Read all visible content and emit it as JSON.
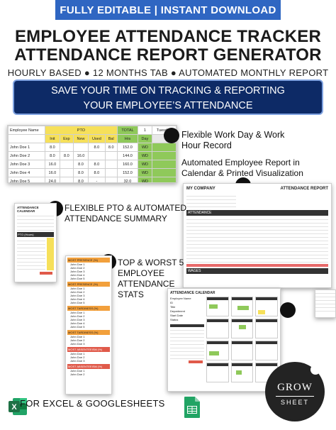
{
  "banner": "FULLY EDITABLE | INSTANT DOWNLOAD",
  "title_line1": "EMPLOYEE ATTENDANCE TRACKER",
  "title_line2": "ATTENDANCE REPORT GENERATOR",
  "subtitle": "HOURLY BASED ● 12 MONTHS TAB ● AUTOMATED MONTHLY REPORT",
  "hero_line1": "SAVE YOUR TIME ON TRACKING & REPORTING",
  "hero_line2": "YOUR EMPLOYEE’S ATTENDANCE",
  "features": {
    "f1_line1": "Flexible Work Day & Work",
    "f1_line2": "Hour Record",
    "f2_line1": "Automated Employee Report in",
    "f2_line2": "Calendar & Printed Visualization",
    "f3_line1": "FLEXIBLE PTO & AUTOMATED",
    "f3_line2": "ATTENDANCE SUMMARY",
    "f4_line1": "TOP & WORST 5",
    "f4_line2": "EMPLOYEE",
    "f4_line3": "ATTENDANCE",
    "f4_line4": "STATS"
  },
  "tracker": {
    "headers": [
      "Employee Name",
      "PTO",
      "TOTAL",
      "1",
      "Tuesday"
    ],
    "subheaders": [
      "Init",
      "Exp",
      "New",
      "Used",
      "Bal",
      "Hrs",
      "Day"
    ],
    "rows": [
      {
        "name": "John Doe 1",
        "init": "8.0",
        "exp": "",
        "new": "",
        "used": "8.0",
        "bal": "8.0",
        "hrs": "152.0",
        "code": "WD"
      },
      {
        "name": "John Doe 2",
        "init": "8.0",
        "exp": "8.0",
        "new": "16.0",
        "used": "",
        "bal": "",
        "hrs": "144.0",
        "code": "WD"
      },
      {
        "name": "John Doe 3",
        "init": "16.0",
        "exp": "",
        "new": "8.0",
        "used": "8.0",
        "bal": "",
        "hrs": "160.0",
        "code": "WD"
      },
      {
        "name": "John Doe 4",
        "init": "16.0",
        "exp": "",
        "new": "8.0",
        "used": "8.0",
        "bal": "",
        "hrs": "152.0",
        "code": "WD"
      },
      {
        "name": "John Doe 5",
        "init": "24.0",
        "exp": "",
        "new": "8.0",
        "used": "-",
        "bal": "",
        "hrs": "32.0",
        "code": "WD"
      }
    ]
  },
  "report": {
    "company": "MY COMPANY",
    "report_title": "ATTENDANCE REPORT",
    "section_attendance": "ATTENDANCE",
    "section_wages": "WAGES"
  },
  "calendar": {
    "title": "ATTENDANCE CALENDAR",
    "fields": [
      "Employee Name",
      "ID",
      "Title",
      "Department",
      "Start Date",
      "Status"
    ]
  },
  "summary": {
    "title": "ATTENDANCE CALENDAR",
    "pto_label": "PTO (Hours)"
  },
  "stats": {
    "sections": [
      "MOST PRESENCE (%)",
      "MOST PRESENCE (%)",
      "MOST TARDINESS (%)",
      "MOST TARDINESS (%)",
      "MOST ABSENTEEISM (%)",
      "MOST ABSENTEEISM (%)"
    ],
    "names": [
      "John Doe 1",
      "John Doe 2",
      "John Doe 3",
      "John Doe 4",
      "John Doe 5"
    ]
  },
  "footer": "FOR EXCEL & GOOGLESHEETS",
  "logo_top": "GROW",
  "logo_bottom": "SHEET",
  "colors": {
    "banner": "#2f66c2",
    "navy": "#0d2a66",
    "yellow": "#f6e05a",
    "green": "#8fc95a",
    "red": "#e05a4a",
    "excel": "#1e7145",
    "sheets": "#21a464"
  }
}
